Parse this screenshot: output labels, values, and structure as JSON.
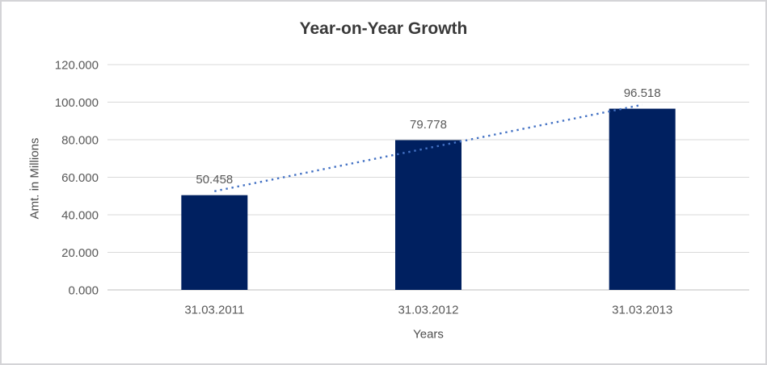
{
  "chart_data": {
    "type": "bar",
    "title": "Year-on-Year Growth",
    "categories": [
      "31.03.2011",
      "31.03.2012",
      "31.03.2013"
    ],
    "values": [
      50.458,
      79.778,
      96.518
    ],
    "data_labels": [
      "50.458",
      "79.778",
      "96.518"
    ],
    "xlabel": "Years",
    "ylabel": "Amt. in Millions",
    "ylim": [
      0,
      120
    ],
    "ytick_step": 20,
    "ytick_labels": [
      "0.000",
      "20.000",
      "40.000",
      "60.000",
      "80.000",
      "100.000",
      "120.000"
    ],
    "grid": true,
    "legend": "none",
    "bar_color": "#002060",
    "trendline": {
      "type": "linear",
      "style": "dotted",
      "color": "#4472C4"
    },
    "colors": {
      "title": "#3A3A3A",
      "axis_title": "#4D4D4D",
      "tick_label": "#595959",
      "data_label": "#595959",
      "gridline": "#D9D9D9",
      "axis_line": "#BFBFBF",
      "background": "#FFFFFF",
      "border": "#D4D4D7"
    }
  }
}
